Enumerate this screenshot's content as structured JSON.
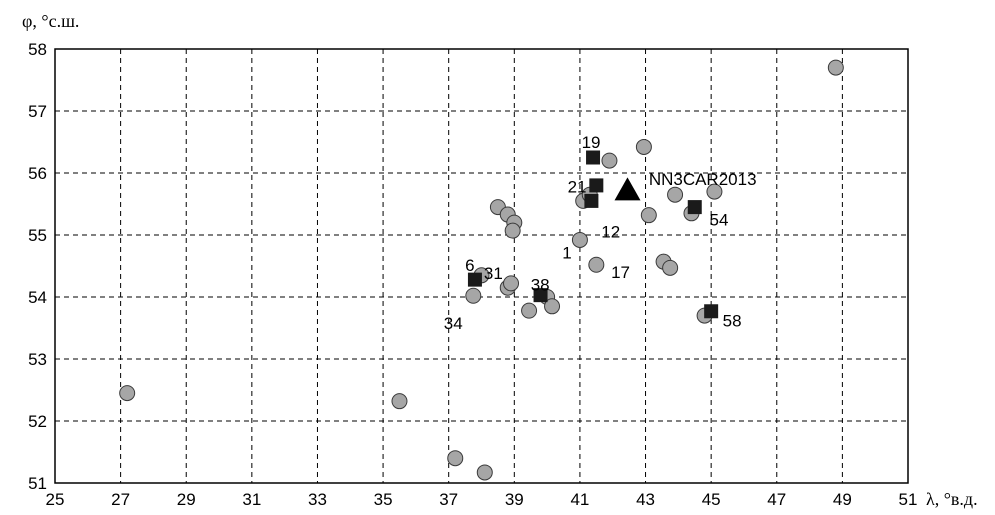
{
  "chart_data": {
    "type": "scatter",
    "title": "",
    "xlabel": "λ, °в.д.",
    "ylabel": "φ, °с.ш.",
    "xlim": [
      25,
      51
    ],
    "ylim": [
      51,
      58
    ],
    "xticks": [
      25,
      27,
      29,
      31,
      33,
      35,
      37,
      39,
      41,
      43,
      45,
      47,
      49,
      51
    ],
    "yticks": [
      51,
      52,
      53,
      54,
      55,
      56,
      57,
      58
    ],
    "grid": true,
    "series": [
      {
        "marker": "circle",
        "color": "#a6a6a6",
        "points": [
          {
            "x": 27.2,
            "y": 52.45
          },
          {
            "x": 35.5,
            "y": 52.32
          },
          {
            "x": 37.2,
            "y": 51.4
          },
          {
            "x": 38.1,
            "y": 51.17
          },
          {
            "x": 37.75,
            "y": 54.02
          },
          {
            "x": 38.0,
            "y": 54.35
          },
          {
            "x": 38.8,
            "y": 54.15
          },
          {
            "x": 38.9,
            "y": 54.22
          },
          {
            "x": 39.45,
            "y": 53.78
          },
          {
            "x": 40.0,
            "y": 54.0
          },
          {
            "x": 40.15,
            "y": 53.85
          },
          {
            "x": 38.5,
            "y": 55.45
          },
          {
            "x": 38.8,
            "y": 55.33
          },
          {
            "x": 39.0,
            "y": 55.2
          },
          {
            "x": 38.95,
            "y": 55.07
          },
          {
            "x": 41.0,
            "y": 54.92
          },
          {
            "x": 41.5,
            "y": 54.52
          },
          {
            "x": 41.1,
            "y": 55.55
          },
          {
            "x": 41.3,
            "y": 55.65
          },
          {
            "x": 41.9,
            "y": 56.2
          },
          {
            "x": 42.95,
            "y": 56.42
          },
          {
            "x": 43.1,
            "y": 55.32
          },
          {
            "x": 43.9,
            "y": 55.65
          },
          {
            "x": 44.4,
            "y": 55.35
          },
          {
            "x": 45.1,
            "y": 55.7
          },
          {
            "x": 43.55,
            "y": 54.57
          },
          {
            "x": 43.75,
            "y": 54.47
          },
          {
            "x": 44.8,
            "y": 53.7
          },
          {
            "x": 48.8,
            "y": 57.7
          }
        ]
      },
      {
        "marker": "square",
        "color": "#1a1a1a",
        "points": [
          {
            "x": 41.4,
            "y": 56.25
          },
          {
            "x": 41.5,
            "y": 55.8
          },
          {
            "x": 41.35,
            "y": 55.55
          },
          {
            "x": 44.5,
            "y": 55.45
          },
          {
            "x": 37.8,
            "y": 54.28
          },
          {
            "x": 39.8,
            "y": 54.03
          },
          {
            "x": 45.0,
            "y": 53.77
          }
        ]
      },
      {
        "marker": "triangle",
        "color": "#000000",
        "points": [
          {
            "x": 42.45,
            "y": 55.72
          }
        ]
      }
    ],
    "annotations": [
      {
        "text": "19",
        "x": 41.05,
        "y": 56.5,
        "anchor": "start"
      },
      {
        "text": "21",
        "x": 41.2,
        "y": 55.78,
        "anchor": "end"
      },
      {
        "text": "NN3CAR2013",
        "x": 43.1,
        "y": 55.9,
        "anchor": "start"
      },
      {
        "text": "12",
        "x": 41.65,
        "y": 55.06,
        "anchor": "start"
      },
      {
        "text": "54",
        "x": 44.95,
        "y": 55.25,
        "anchor": "start"
      },
      {
        "text": "1",
        "x": 40.75,
        "y": 54.72,
        "anchor": "end"
      },
      {
        "text": "17",
        "x": 41.95,
        "y": 54.4,
        "anchor": "start"
      },
      {
        "text": "6",
        "x": 37.5,
        "y": 54.52,
        "anchor": "start"
      },
      {
        "text": "31",
        "x": 38.65,
        "y": 54.39,
        "anchor": "end"
      },
      {
        "text": "38",
        "x": 39.5,
        "y": 54.2,
        "anchor": "start"
      },
      {
        "text": "34",
        "x": 36.85,
        "y": 53.58,
        "anchor": "start"
      },
      {
        "text": "58",
        "x": 45.35,
        "y": 53.62,
        "anchor": "start"
      }
    ]
  }
}
